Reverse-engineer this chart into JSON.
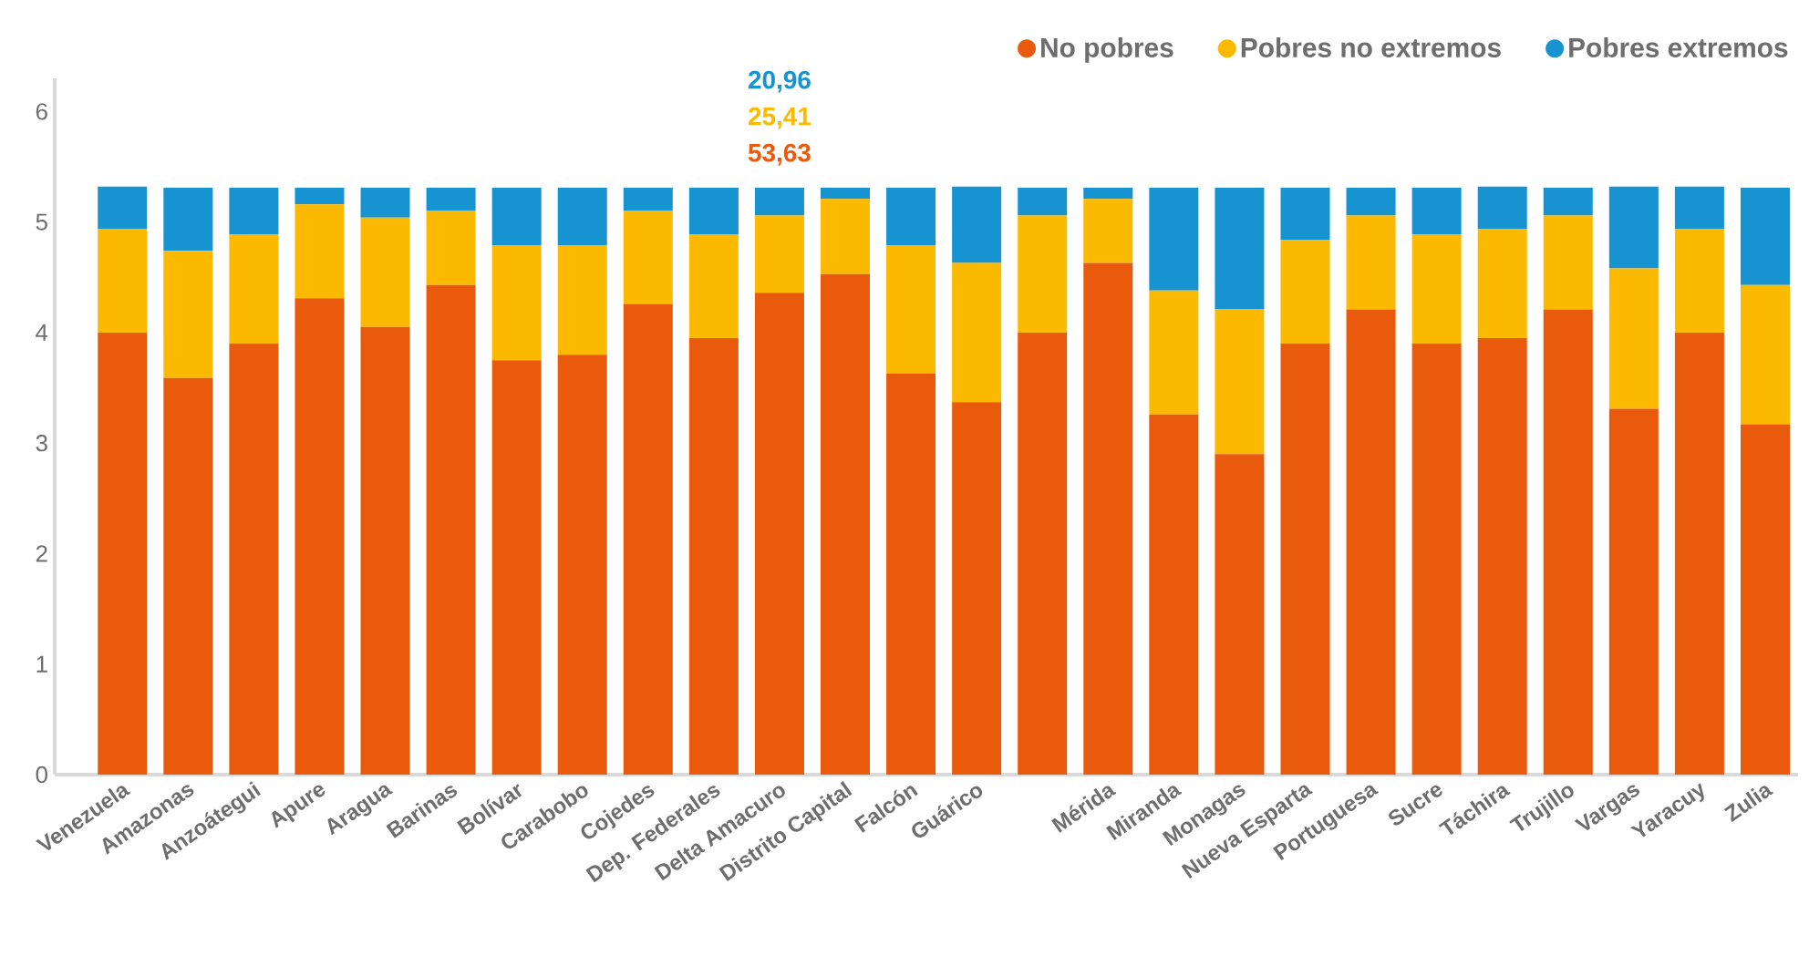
{
  "chart_data": {
    "type": "bar",
    "stacked": true,
    "categories": [
      "Venezuela",
      "Amazonas",
      "Anzoátegui",
      "Apure",
      "Aragua",
      "Barinas",
      "Bolívar",
      "Carabobo",
      "Cojedes",
      "Dep. Federales",
      "Delta Amacuro",
      "Distrito Capital",
      "Falcón",
      "Guárico",
      null,
      "Mérida",
      "Miranda",
      "Monagas",
      "Nueva Esparta",
      "Portuguesa",
      "Sucre",
      "Táchira",
      "Trujillo",
      "Vargas",
      "Yaracuy",
      "Zulia"
    ],
    "series": [
      {
        "name": "No pobres",
        "color": "#e95a0c",
        "values": [
          4.0,
          3.59,
          3.9,
          4.31,
          4.05,
          4.43,
          3.75,
          3.8,
          4.26,
          3.95,
          4.36,
          4.53,
          3.63,
          3.37,
          4.0,
          4.63,
          3.26,
          2.9,
          3.9,
          4.21,
          3.9,
          3.95,
          4.21,
          3.31,
          4.0,
          3.17
        ]
      },
      {
        "name": "Pobres no extremos",
        "color": "#fbb900",
        "values": [
          0.94,
          1.15,
          0.99,
          0.85,
          0.99,
          0.67,
          1.04,
          0.99,
          0.84,
          0.94,
          0.7,
          0.68,
          1.16,
          1.26,
          1.06,
          0.58,
          1.12,
          1.31,
          0.94,
          0.85,
          0.99,
          0.99,
          0.85,
          1.27,
          0.94,
          1.26
        ]
      },
      {
        "name": "Pobres extremos",
        "color": "#1793d1",
        "values": [
          0.38,
          0.57,
          0.42,
          0.15,
          0.27,
          0.21,
          0.52,
          0.52,
          0.21,
          0.42,
          0.25,
          0.1,
          0.52,
          0.69,
          0.25,
          0.1,
          0.93,
          1.1,
          0.47,
          0.25,
          0.42,
          0.38,
          0.25,
          0.74,
          0.38,
          0.88
        ]
      }
    ],
    "ylim": [
      0,
      6.3
    ],
    "yticks": [
      0,
      1,
      2,
      3,
      4,
      5,
      6
    ],
    "legend": "top right",
    "annotations": [
      "20,96",
      "25,41",
      "53,63"
    ]
  }
}
